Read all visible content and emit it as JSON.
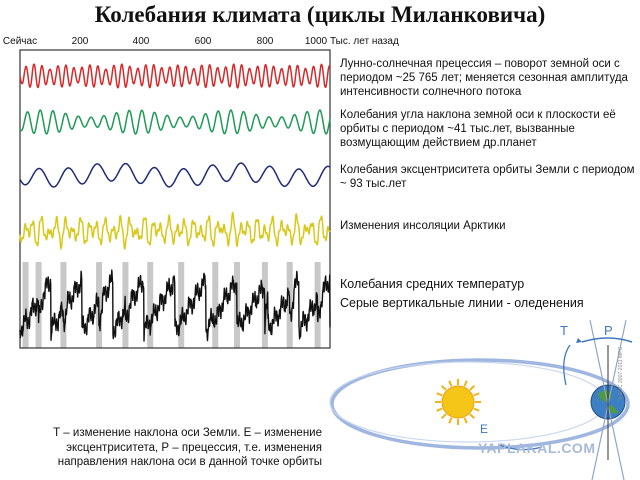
{
  "title": "Колебания климата (циклы Миланковича)",
  "axis": {
    "now_label": "Сейчас",
    "ticks": [
      "200",
      "400",
      "600",
      "800",
      "1000"
    ],
    "unit": "Тыс. лет назад"
  },
  "descriptions": [
    "Лунно-солнечная прецессия – поворот земной оси с периодом ~25 765 лет; меняется сезонная амплитуда интенсивности солнечного потока",
    "Колебания угла наклона земной оси к плоскости её орбиты с периодом ~41 тыс.лет, вызванные возмущающим действием др.планет",
    "Колебания эксцентриситета орбиты Земли с периодом ~ 93 тыс.лет",
    "Изменения инсоляции Арктики",
    "Колебания средних температур",
    "Серые вертикальные линии - оледенения"
  ],
  "bottom_caption": "Т – изменение наклона оси Земли. Е – изменение эксцентриситета, Р – прецессия, т.е. изменения направления наклона оси в данной точке орбиты",
  "diagram_labels": {
    "tilt": "T",
    "precession": "P",
    "eccentricity": "E"
  },
  "watermark": "YAPLAKAL.COM",
  "copyright": "© ECC 2007-2011 MPG",
  "colors": {
    "precession": "#d42a2a",
    "obliquity": "#1f9a56",
    "eccentricity": "#1f2a78",
    "insolation": "#d9c81c",
    "temperature": "#111111",
    "glaciation": "#c8c8c8",
    "orbit": "#9fb6e0",
    "diagram_label": "#3e78c2"
  },
  "chart_data": {
    "type": "line",
    "xlabel": "Тыс. лет назад",
    "x_range": [
      0,
      1000
    ],
    "series": [
      {
        "name": "precession",
        "period_kyr": 25.765
      },
      {
        "name": "obliquity",
        "period_kyr": 41
      },
      {
        "name": "eccentricity",
        "period_kyr": 93
      },
      {
        "name": "insolation"
      },
      {
        "name": "temperature"
      }
    ],
    "glaciations_kyr": [
      18,
      60,
      140,
      255,
      340,
      420,
      520,
      630,
      700,
      790,
      870,
      960
    ]
  }
}
